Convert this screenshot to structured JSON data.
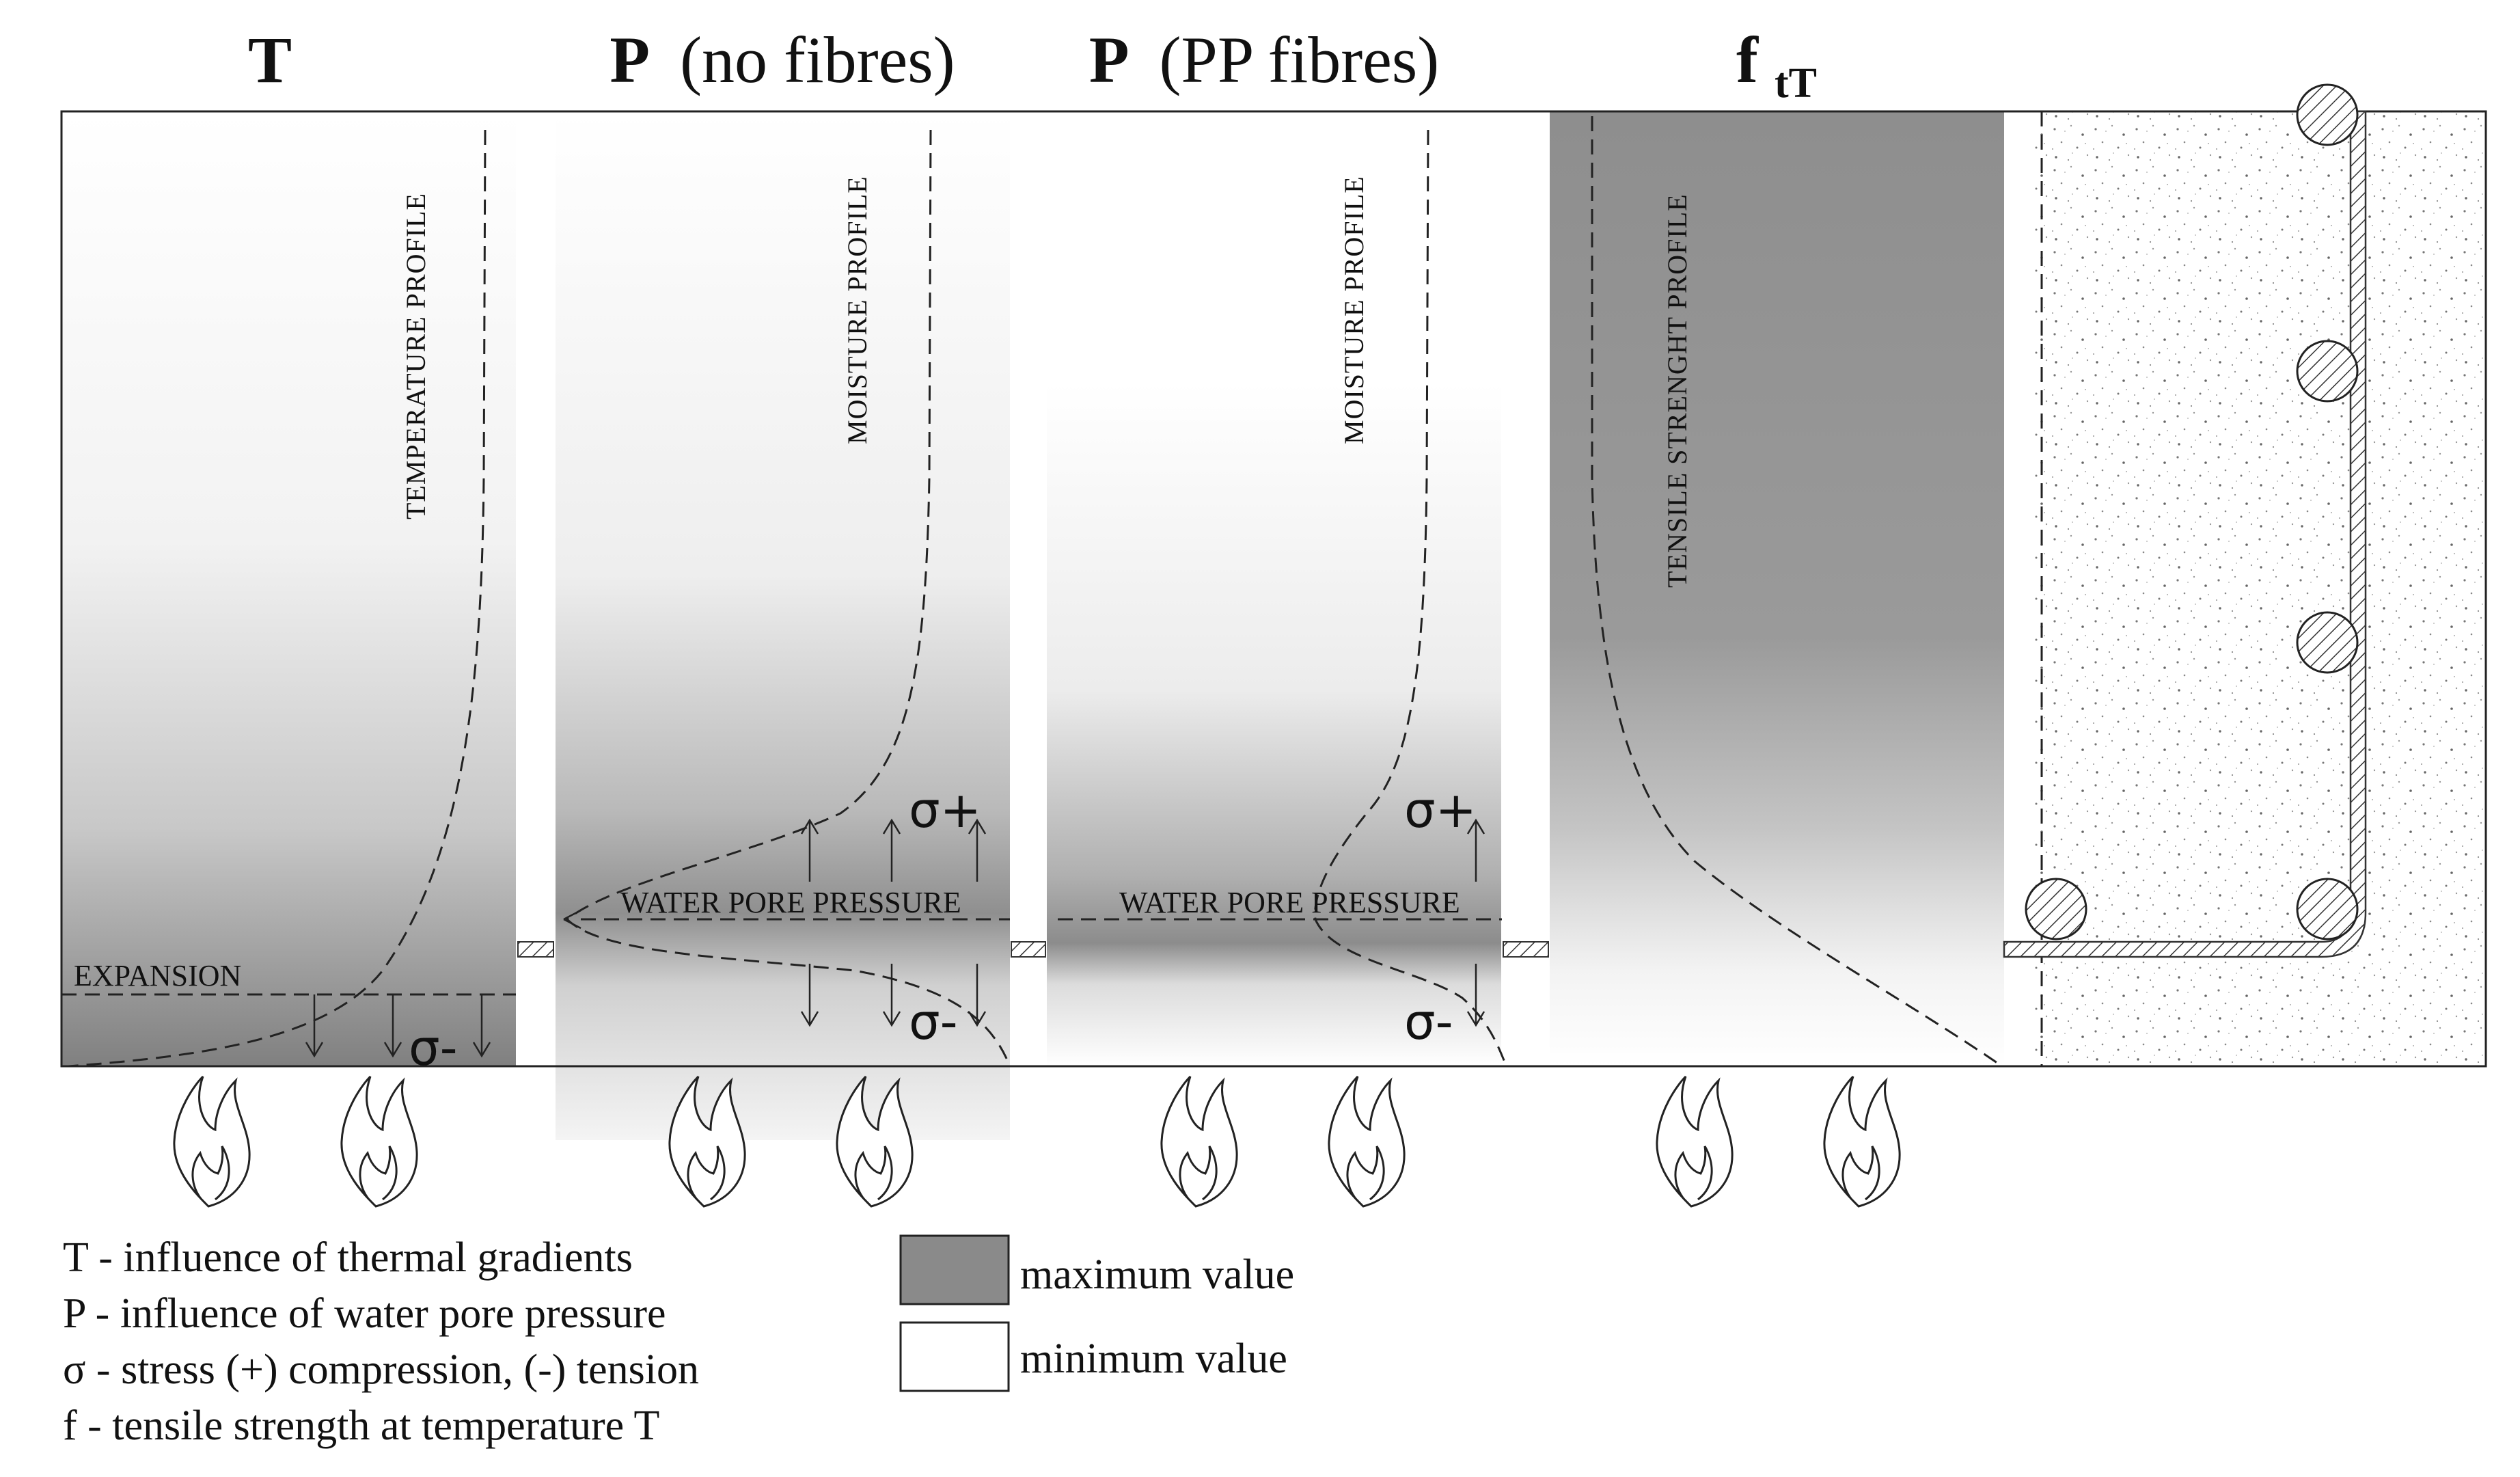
{
  "headers": {
    "temperature": {
      "symbol": "T",
      "note": ""
    },
    "pressure_no_fibres": {
      "symbol": "P",
      "note": "(no fibres)"
    },
    "pressure_pp_fibres": {
      "symbol": "P",
      "note": "(PP fibres)"
    },
    "tensile": {
      "symbol": "f",
      "subscript": "tT"
    }
  },
  "panels": {
    "temperature": {
      "profile_label": "TEMPERATURE PROFILE",
      "side_label": "EXPANSION",
      "stress": "σ-"
    },
    "no_fibres": {
      "profile_label": "MOISTURE PROFILE",
      "pressure_label": "WATER PORE PRESSURE",
      "stress_plus": "σ+",
      "stress_minus": "σ-"
    },
    "pp_fibres": {
      "profile_label": "MOISTURE PROFILE",
      "pressure_label": "WATER PORE PRESSURE",
      "stress_plus": "σ+",
      "stress_minus": "σ-"
    },
    "tensile": {
      "profile_label": "TENSILE STRENGHT PROFILE"
    }
  },
  "legend": {
    "definitions": [
      "T -  influence of thermal gradients",
      "P -  influence of water pore pressure",
      "σ -  stress (+) compression, (-) tension",
      "f -  tensile strength at temperature T"
    ],
    "swatches": [
      {
        "label": "maximum value",
        "color": "#8a8a8a"
      },
      {
        "label": "minimum value",
        "color": "#ffffff"
      }
    ]
  },
  "icons": {
    "flame": "flame-icon",
    "rebar": "rebar-section-icon"
  },
  "colors": {
    "max_value": "#8a8a8a",
    "min_value": "#ffffff",
    "line": "#222222"
  }
}
